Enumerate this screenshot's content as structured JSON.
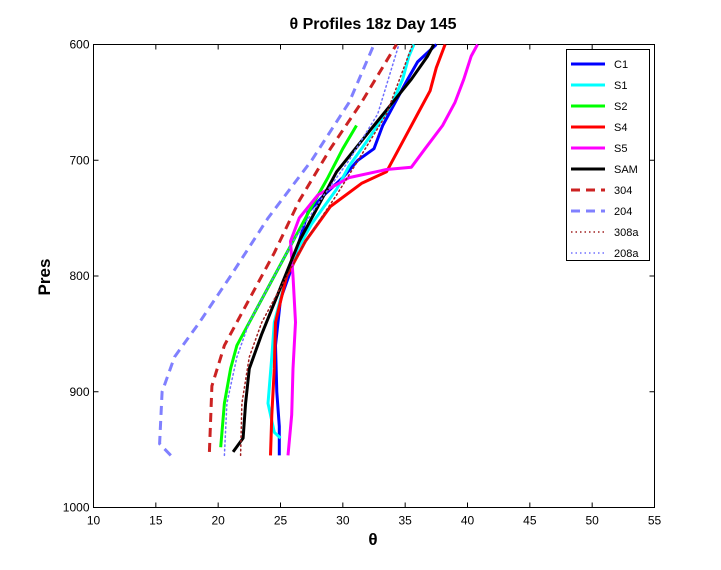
{
  "chart_data": {
    "type": "line",
    "title": "θ Profiles 18z Day 145",
    "xlabel": "θ",
    "ylabel": "Pres",
    "xlim": [
      10,
      55
    ],
    "ylim": [
      1000,
      600
    ],
    "y_reversed": true,
    "x_ticks": [
      "10",
      "15",
      "20",
      "25",
      "30",
      "35",
      "40",
      "45",
      "50",
      "55"
    ],
    "y_ticks": [
      "600",
      "700",
      "800",
      "900",
      "1000"
    ],
    "grid": false,
    "legend_position": "top-right",
    "series": [
      {
        "name": "C1",
        "color": "#0000ff",
        "dash": "solid",
        "width": 3,
        "x": [
          24.9,
          24.9,
          24.7,
          24.6,
          25.0,
          26.0,
          26.5,
          27.2,
          28.5,
          30.0,
          31.2,
          32.5,
          33.2,
          34.2,
          35.2,
          36.0,
          37.5
        ],
        "y": [
          955,
          930,
          900,
          860,
          820,
          790,
          770,
          745,
          730,
          715,
          700,
          690,
          670,
          650,
          630,
          615,
          600
        ]
      },
      {
        "name": "S1",
        "color": "#00ffff",
        "dash": "solid",
        "width": 3,
        "x": [
          25.0,
          24.5,
          24.0,
          24.3,
          24.5,
          25.5,
          26.2,
          27.5,
          28.5,
          29.5,
          30.5,
          31.5,
          32.8,
          34.0,
          34.8,
          35.3,
          35.7
        ],
        "y": [
          940,
          935,
          910,
          870,
          840,
          800,
          780,
          755,
          740,
          725,
          705,
          690,
          670,
          650,
          630,
          610,
          600
        ]
      },
      {
        "name": "S2",
        "color": "#00ff00",
        "dash": "solid",
        "width": 3,
        "x": [
          20.2,
          20.5,
          21.0,
          21.5,
          23.0,
          24.5,
          26.0,
          27.5,
          28.8,
          30.0,
          31.1
        ],
        "y": [
          948,
          910,
          880,
          860,
          830,
          800,
          770,
          740,
          715,
          690,
          670
        ]
      },
      {
        "name": "S4",
        "color": "#ff0000",
        "dash": "solid",
        "width": 3,
        "x": [
          24.2,
          24.3,
          24.5,
          24.6,
          25.5,
          27.0,
          29.0,
          31.5,
          33.5,
          35.0,
          36.0,
          37.0,
          37.5,
          38.2
        ],
        "y": [
          955,
          920,
          880,
          840,
          800,
          770,
          740,
          720,
          710,
          680,
          660,
          640,
          620,
          600
        ]
      },
      {
        "name": "S5",
        "color": "#ff00ff",
        "dash": "solid",
        "width": 3,
        "x": [
          25.6,
          25.9,
          26.0,
          26.2,
          26.0,
          25.8,
          26.5,
          28.0,
          30.5,
          33.5,
          35.5,
          36.6,
          38.0,
          39.0,
          39.7,
          40.3,
          40.8
        ],
        "y": [
          955,
          920,
          880,
          840,
          800,
          770,
          750,
          730,
          715,
          708,
          706,
          690,
          670,
          650,
          630,
          610,
          600
        ]
      },
      {
        "name": "SAM",
        "color": "#000000",
        "dash": "solid",
        "width": 3,
        "x": [
          21.2,
          22.0,
          22.2,
          22.5,
          23.5,
          25.0,
          26.5,
          28.0,
          29.5,
          31.0,
          32.5,
          34.0,
          35.5,
          36.8,
          37.3
        ],
        "y": [
          952,
          940,
          910,
          880,
          850,
          810,
          770,
          740,
          710,
          690,
          670,
          650,
          630,
          610,
          600
        ]
      },
      {
        "name": "304",
        "color": "#cc2222",
        "dash": "dashed",
        "width": 3,
        "x": [
          19.3,
          19.5,
          20.5,
          22.5,
          24.5,
          26.5,
          29.0,
          31.5,
          34.3
        ],
        "y": [
          952,
          895,
          860,
          820,
          780,
          735,
          690,
          650,
          600
        ]
      },
      {
        "name": "204",
        "color": "#8080ff",
        "dash": "dashed",
        "width": 3,
        "x": [
          16.2,
          15.3,
          15.5,
          16.5,
          18.5,
          21.0,
          24.0,
          27.5,
          30.5,
          32.5
        ],
        "y": [
          955,
          945,
          900,
          870,
          840,
          800,
          750,
          700,
          650,
          600
        ]
      },
      {
        "name": "308a",
        "color": "#a02020",
        "dash": "dotted",
        "width": 1.5,
        "x": [
          21.8,
          21.9,
          22.5,
          23.5,
          25.0,
          27.0,
          29.5,
          31.8,
          33.5,
          35.6
        ],
        "y": [
          955,
          910,
          870,
          840,
          810,
          770,
          730,
          690,
          660,
          600
        ]
      },
      {
        "name": "208a",
        "color": "#7070ff",
        "dash": "dotted",
        "width": 1.5,
        "x": [
          20.5,
          20.7,
          21.5,
          22.5,
          24.0,
          26.0,
          28.5,
          30.5,
          32.8,
          34.5
        ],
        "y": [
          955,
          910,
          870,
          840,
          810,
          770,
          730,
          700,
          660,
          600
        ]
      }
    ]
  }
}
